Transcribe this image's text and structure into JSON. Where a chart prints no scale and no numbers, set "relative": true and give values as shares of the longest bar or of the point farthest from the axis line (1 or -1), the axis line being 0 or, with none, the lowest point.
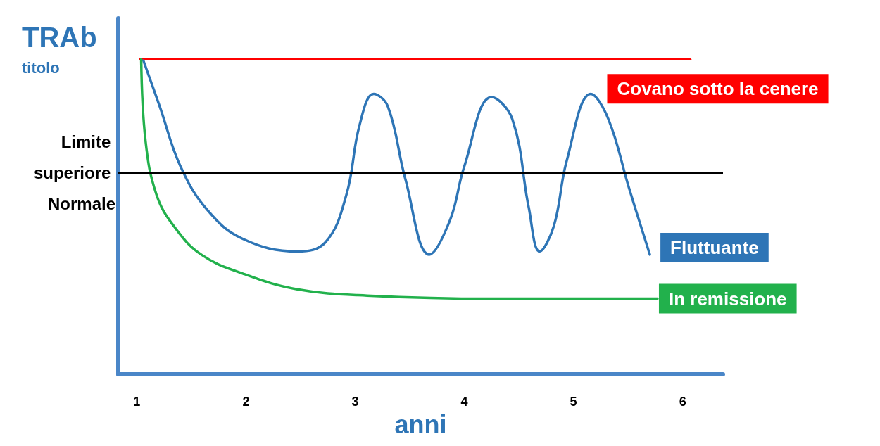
{
  "chart_data": {
    "type": "line",
    "title": "TRAb",
    "subtitle": "titolo",
    "xlabel": "anni",
    "relative": true,
    "xlim": [
      0.83,
      6.37
    ],
    "xticks": [
      1,
      2,
      3,
      4,
      5,
      6
    ],
    "grid": false,
    "legend": false,
    "marker": "none",
    "line_style": "solid",
    "ref_lines": [
      {
        "axis": "y",
        "value": 0.64,
        "label": "Limite superiore Normale",
        "color": "#000000"
      }
    ],
    "series": [
      {
        "name": "Covano sotto la cenere",
        "color": "#ff0000",
        "x": [
          1.03,
          6.07
        ],
        "values": [
          1,
          1
        ]
      },
      {
        "name": "Fluttuante",
        "color": "#2e75b6",
        "x": [
          1.06,
          1.21,
          1.4,
          1.65,
          1.97,
          2.47,
          2.73,
          2.92,
          3.04,
          3.17,
          3.3,
          3.46,
          3.68,
          3.87,
          4.0,
          4.25,
          4.44,
          4.59,
          4.69,
          4.82,
          4.94,
          5.16,
          5.32,
          5.51,
          5.7
        ],
        "values": [
          0.996,
          0.85,
          0.66,
          0.52,
          0.43,
          0.39,
          0.42,
          0.57,
          0.79,
          0.89,
          0.85,
          0.62,
          0.38,
          0.49,
          0.66,
          0.88,
          0.81,
          0.53,
          0.39,
          0.47,
          0.68,
          0.89,
          0.81,
          0.59,
          0.38
        ]
      },
      {
        "name": "In remissione",
        "color": "#22b14c",
        "x": [
          1.04,
          1.08,
          1.18,
          1.34,
          1.59,
          1.97,
          2.47,
          3.11,
          4.25,
          5.77
        ],
        "values": [
          1,
          0.74,
          0.57,
          0.47,
          0.38,
          0.32,
          0.27,
          0.25,
          0.24,
          0.24
        ]
      }
    ]
  }
}
